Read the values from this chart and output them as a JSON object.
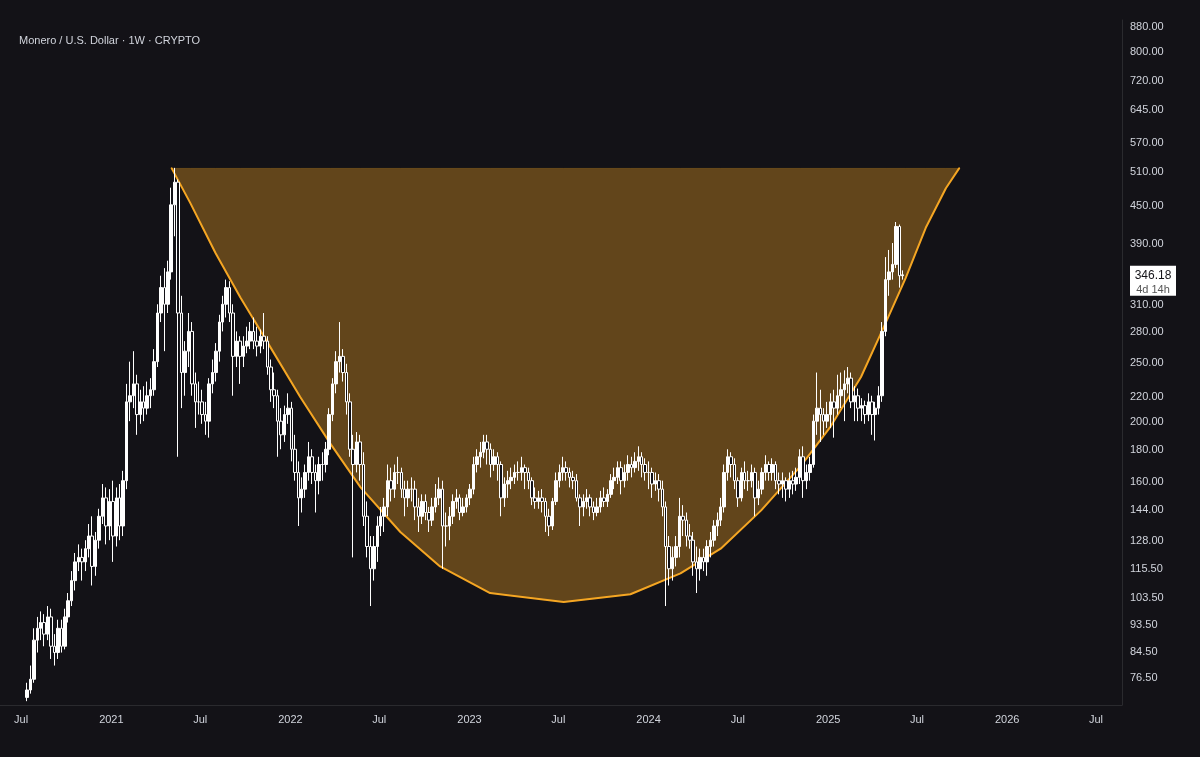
{
  "chart_data": {
    "type": "candlestick",
    "title": "Monero / U.S. Dollar · 1W · CRYPTO",
    "xlim": [
      "2020-05-19",
      "2026-08-23"
    ],
    "xticks": [
      {
        "value": "2020-07-01",
        "label": "Jul"
      },
      {
        "value": "2021-01-01",
        "label": "2021"
      },
      {
        "value": "2021-07-01",
        "label": "Jul"
      },
      {
        "value": "2022-01-01",
        "label": "2022"
      },
      {
        "value": "2022-07-01",
        "label": "Jul"
      },
      {
        "value": "2023-01-01",
        "label": "2023"
      },
      {
        "value": "2023-07-01",
        "label": "Jul"
      },
      {
        "value": "2024-01-01",
        "label": "2024"
      },
      {
        "value": "2024-07-01",
        "label": "Jul"
      },
      {
        "value": "2025-01-01",
        "label": "2025"
      },
      {
        "value": "2025-07-01",
        "label": "Jul"
      },
      {
        "value": "2026-01-01",
        "label": "2026"
      },
      {
        "value": "2026-07-01",
        "label": "Jul"
      }
    ],
    "log": "y",
    "ylim": [
      69,
      900
    ],
    "yticks": [
      {
        "value": 76.5,
        "label": "76.50"
      },
      {
        "value": 84.5,
        "label": "84.50"
      },
      {
        "value": 93.5,
        "label": "93.50"
      },
      {
        "value": 103.5,
        "label": "103.50"
      },
      {
        "value": 115.5,
        "label": "115.50"
      },
      {
        "value": 128,
        "label": "128.00"
      },
      {
        "value": 144,
        "label": "144.00"
      },
      {
        "value": 160,
        "label": "160.00"
      },
      {
        "value": 180,
        "label": "180.00"
      },
      {
        "value": 200,
        "label": "200.00"
      },
      {
        "value": 220,
        "label": "220.00"
      },
      {
        "value": 250,
        "label": "250.00"
      },
      {
        "value": 280,
        "label": "280.00"
      },
      {
        "value": 310,
        "label": "310.00"
      },
      {
        "value": 390,
        "label": "390.00"
      },
      {
        "value": 450,
        "label": "450.00"
      },
      {
        "value": 510,
        "label": "510.00"
      },
      {
        "value": 570,
        "label": "570.00"
      },
      {
        "value": 645,
        "label": "645.00"
      },
      {
        "value": 720,
        "label": "720.00"
      },
      {
        "value": 800,
        "label": "800.00"
      },
      {
        "value": 880,
        "label": "880.00"
      }
    ],
    "annotations": [
      "346.18",
      "4d 14h"
    ],
    "series": [
      {
        "color": "#ffffff",
        "x": [
          "2020-07-13",
          "2020-07-20",
          "2020-07-27",
          "2020-08-03",
          "2020-08-10",
          "2020-08-17",
          "2020-08-24",
          "2020-08-31",
          "2020-09-07",
          "2020-09-14",
          "2020-09-21",
          "2020-09-28",
          "2020-10-05",
          "2020-10-12",
          "2020-10-19",
          "2020-10-26",
          "2020-11-02",
          "2020-11-09",
          "2020-11-16",
          "2020-11-23",
          "2020-11-30",
          "2020-12-07",
          "2020-12-14",
          "2020-12-21",
          "2020-12-28",
          "2021-01-04",
          "2021-01-11",
          "2021-01-18",
          "2021-01-25",
          "2021-02-01",
          "2021-02-08",
          "2021-02-15",
          "2021-02-22",
          "2021-03-01",
          "2021-03-08",
          "2021-03-15",
          "2021-03-22",
          "2021-03-29",
          "2021-04-05",
          "2021-04-12",
          "2021-04-19",
          "2021-04-26",
          "2021-05-03",
          "2021-05-10",
          "2021-05-17",
          "2021-05-24",
          "2021-05-31",
          "2021-06-07",
          "2021-06-14",
          "2021-06-21",
          "2021-06-28",
          "2021-07-05",
          "2021-07-12",
          "2021-07-19",
          "2021-07-26",
          "2021-08-02",
          "2021-08-09",
          "2021-08-16",
          "2021-08-23",
          "2021-08-30",
          "2021-09-06",
          "2021-09-13",
          "2021-09-20",
          "2021-09-27",
          "2021-10-04",
          "2021-10-11",
          "2021-10-18",
          "2021-10-25",
          "2021-11-01",
          "2021-11-08",
          "2021-11-15",
          "2021-11-22",
          "2021-11-29",
          "2021-12-06",
          "2021-12-13",
          "2021-12-20",
          "2021-12-27",
          "2022-01-03",
          "2022-01-10",
          "2022-01-17",
          "2022-01-24",
          "2022-01-31",
          "2022-02-07",
          "2022-02-14",
          "2022-02-21",
          "2022-02-28",
          "2022-03-07",
          "2022-03-14",
          "2022-03-21",
          "2022-03-28",
          "2022-04-04",
          "2022-04-11",
          "2022-04-18",
          "2022-04-25",
          "2022-05-02",
          "2022-05-09",
          "2022-05-16",
          "2022-05-23",
          "2022-05-30",
          "2022-06-06",
          "2022-06-13",
          "2022-06-20",
          "2022-06-27",
          "2022-07-04",
          "2022-07-11",
          "2022-07-18",
          "2022-07-25",
          "2022-08-01",
          "2022-08-08",
          "2022-08-15",
          "2022-08-22",
          "2022-08-29",
          "2022-09-05",
          "2022-09-12",
          "2022-09-19",
          "2022-09-26",
          "2022-10-03",
          "2022-10-10",
          "2022-10-17",
          "2022-10-24",
          "2022-10-31",
          "2022-11-07",
          "2022-11-14",
          "2022-11-21",
          "2022-11-28",
          "2022-12-05",
          "2022-12-12",
          "2022-12-19",
          "2022-12-26",
          "2023-01-02",
          "2023-01-09",
          "2023-01-16",
          "2023-01-23",
          "2023-01-30",
          "2023-02-06",
          "2023-02-13",
          "2023-02-20",
          "2023-02-27",
          "2023-03-06",
          "2023-03-13",
          "2023-03-20",
          "2023-03-27",
          "2023-04-03",
          "2023-04-10",
          "2023-04-17",
          "2023-04-24",
          "2023-05-01",
          "2023-05-08",
          "2023-05-15",
          "2023-05-22",
          "2023-05-29",
          "2023-06-05",
          "2023-06-12",
          "2023-06-19",
          "2023-06-26",
          "2023-07-03",
          "2023-07-10",
          "2023-07-17",
          "2023-07-24",
          "2023-07-31",
          "2023-08-07",
          "2023-08-14",
          "2023-08-21",
          "2023-08-28",
          "2023-09-04",
          "2023-09-11",
          "2023-09-18",
          "2023-09-25",
          "2023-10-02",
          "2023-10-09",
          "2023-10-16",
          "2023-10-23",
          "2023-10-30",
          "2023-11-06",
          "2023-11-13",
          "2023-11-20",
          "2023-11-27",
          "2023-12-04",
          "2023-12-11",
          "2023-12-18",
          "2023-12-25",
          "2024-01-01",
          "2024-01-08",
          "2024-01-15",
          "2024-01-22",
          "2024-01-29",
          "2024-02-05",
          "2024-02-12",
          "2024-02-19",
          "2024-02-26",
          "2024-03-04",
          "2024-03-11",
          "2024-03-18",
          "2024-03-25",
          "2024-04-01",
          "2024-04-08",
          "2024-04-15",
          "2024-04-22",
          "2024-04-29",
          "2024-05-06",
          "2024-05-13",
          "2024-05-20",
          "2024-05-27",
          "2024-06-03",
          "2024-06-10",
          "2024-06-17",
          "2024-06-24",
          "2024-07-01",
          "2024-07-08",
          "2024-07-15",
          "2024-07-22",
          "2024-07-29",
          "2024-08-05",
          "2024-08-12",
          "2024-08-19",
          "2024-08-26",
          "2024-09-02",
          "2024-09-09",
          "2024-09-16",
          "2024-09-23",
          "2024-09-30",
          "2024-10-07",
          "2024-10-14",
          "2024-10-21",
          "2024-10-28",
          "2024-11-04",
          "2024-11-11",
          "2024-11-18",
          "2024-11-25",
          "2024-12-02",
          "2024-12-09",
          "2024-12-16",
          "2024-12-23",
          "2024-12-30",
          "2025-01-06",
          "2025-01-13",
          "2025-01-20",
          "2025-01-27",
          "2025-02-03",
          "2025-02-10",
          "2025-02-17",
          "2025-02-24",
          "2025-03-03",
          "2025-03-10",
          "2025-03-17",
          "2025-03-24",
          "2025-03-31",
          "2025-04-07",
          "2025-04-14",
          "2025-04-21",
          "2025-04-28",
          "2025-05-05",
          "2025-05-12",
          "2025-05-19",
          "2025-05-26",
          "2025-06-02"
        ],
        "ohlc": [
          [
            71,
            75,
            70,
            73
          ],
          [
            73,
            80,
            72,
            76
          ],
          [
            76,
            92,
            75,
            88
          ],
          [
            88,
            96,
            84,
            92
          ],
          [
            92,
            98,
            88,
            94
          ],
          [
            94,
            97,
            86,
            90
          ],
          [
            90,
            100,
            88,
            96
          ],
          [
            96,
            99,
            82,
            86
          ],
          [
            86,
            90,
            80,
            84
          ],
          [
            84,
            95,
            82,
            92
          ],
          [
            92,
            95,
            84,
            86
          ],
          [
            86,
            99,
            85,
            96
          ],
          [
            96,
            105,
            94,
            102
          ],
          [
            102,
            114,
            100,
            110
          ],
          [
            110,
            122,
            106,
            118
          ],
          [
            118,
            126,
            114,
            120
          ],
          [
            120,
            124,
            110,
            118
          ],
          [
            118,
            128,
            114,
            124
          ],
          [
            124,
            136,
            120,
            130
          ],
          [
            130,
            140,
            108,
            116
          ],
          [
            116,
            132,
            112,
            128
          ],
          [
            128,
            144,
            124,
            140
          ],
          [
            140,
            158,
            136,
            150
          ],
          [
            150,
            156,
            126,
            135
          ],
          [
            135,
            155,
            128,
            148
          ],
          [
            148,
            160,
            118,
            130
          ],
          [
            130,
            156,
            125,
            150
          ],
          [
            150,
            158,
            128,
            135
          ],
          [
            135,
            166,
            130,
            160
          ],
          [
            160,
            230,
            155,
            215
          ],
          [
            215,
            250,
            200,
            220
          ],
          [
            220,
            260,
            210,
            230
          ],
          [
            230,
            238,
            190,
            205
          ],
          [
            205,
            225,
            198,
            215
          ],
          [
            215,
            228,
            200,
            210
          ],
          [
            210,
            232,
            205,
            220
          ],
          [
            220,
            235,
            210,
            225
          ],
          [
            225,
            262,
            220,
            250
          ],
          [
            250,
            310,
            245,
            300
          ],
          [
            300,
            345,
            290,
            330
          ],
          [
            330,
            355,
            260,
            310
          ],
          [
            310,
            365,
            300,
            350
          ],
          [
            350,
            480,
            340,
            450
          ],
          [
            450,
            517,
            400,
            490
          ],
          [
            490,
            495,
            175,
            300
          ],
          [
            300,
            320,
            210,
            240
          ],
          [
            240,
            270,
            220,
            260
          ],
          [
            260,
            300,
            245,
            280
          ],
          [
            280,
            290,
            220,
            230
          ],
          [
            230,
            240,
            195,
            215
          ],
          [
            215,
            232,
            205,
            215
          ],
          [
            215,
            225,
            198,
            205
          ],
          [
            205,
            215,
            190,
            200
          ],
          [
            200,
            235,
            188,
            230
          ],
          [
            230,
            252,
            222,
            240
          ],
          [
            240,
            268,
            232,
            260
          ],
          [
            260,
            298,
            250,
            290
          ],
          [
            290,
            320,
            280,
            310
          ],
          [
            310,
            340,
            295,
            330
          ],
          [
            330,
            338,
            290,
            300
          ],
          [
            300,
            310,
            220,
            255
          ],
          [
            255,
            280,
            245,
            270
          ],
          [
            270,
            275,
            230,
            255
          ],
          [
            255,
            275,
            245,
            265
          ],
          [
            265,
            285,
            258,
            270
          ],
          [
            270,
            290,
            262,
            280
          ],
          [
            280,
            295,
            262,
            270
          ],
          [
            270,
            285,
            255,
            265
          ],
          [
            265,
            282,
            258,
            275
          ],
          [
            275,
            300,
            262,
            270
          ],
          [
            270,
            275,
            238,
            245
          ],
          [
            245,
            252,
            215,
            225
          ],
          [
            225,
            240,
            210,
            220
          ],
          [
            220,
            225,
            175,
            200
          ],
          [
            200,
            210,
            180,
            190
          ],
          [
            190,
            212,
            185,
            205
          ],
          [
            205,
            222,
            198,
            210
          ],
          [
            210,
            215,
            172,
            180
          ],
          [
            180,
            190,
            160,
            165
          ],
          [
            165,
            172,
            135,
            150
          ],
          [
            150,
            162,
            142,
            155
          ],
          [
            155,
            170,
            150,
            165
          ],
          [
            165,
            185,
            160,
            175
          ],
          [
            175,
            180,
            158,
            165
          ],
          [
            165,
            170,
            142,
            160
          ],
          [
            160,
            175,
            152,
            170
          ],
          [
            170,
            178,
            160,
            170
          ],
          [
            170,
            185,
            165,
            180
          ],
          [
            180,
            210,
            176,
            205
          ],
          [
            205,
            235,
            200,
            230
          ],
          [
            230,
            260,
            222,
            250
          ],
          [
            250,
            290,
            240,
            255
          ],
          [
            255,
            262,
            232,
            240
          ],
          [
            240,
            248,
            205,
            215
          ],
          [
            215,
            222,
            175,
            180
          ],
          [
            180,
            190,
            120,
            170
          ],
          [
            170,
            192,
            165,
            185
          ],
          [
            185,
            190,
            160,
            170
          ],
          [
            170,
            178,
            135,
            140
          ],
          [
            140,
            148,
            120,
            125
          ],
          [
            125,
            130,
            100,
            115
          ],
          [
            115,
            130,
            110,
            125
          ],
          [
            125,
            140,
            118,
            135
          ],
          [
            135,
            145,
            130,
            140
          ],
          [
            140,
            150,
            132,
            145
          ],
          [
            145,
            170,
            140,
            160
          ],
          [
            160,
            168,
            148,
            155
          ],
          [
            155,
            170,
            150,
            165
          ],
          [
            165,
            175,
            158,
            165
          ],
          [
            165,
            168,
            150,
            155
          ],
          [
            155,
            160,
            140,
            150
          ],
          [
            150,
            160,
            145,
            155
          ],
          [
            155,
            162,
            148,
            155
          ],
          [
            155,
            160,
            138,
            145
          ],
          [
            145,
            150,
            132,
            140
          ],
          [
            140,
            152,
            136,
            148
          ],
          [
            148,
            152,
            138,
            142
          ],
          [
            142,
            145,
            132,
            138
          ],
          [
            138,
            150,
            135,
            145
          ],
          [
            145,
            158,
            142,
            150
          ],
          [
            150,
            162,
            146,
            155
          ],
          [
            155,
            160,
            115,
            135
          ],
          [
            135,
            142,
            125,
            135
          ],
          [
            135,
            145,
            128,
            140
          ],
          [
            140,
            152,
            136,
            148
          ],
          [
            148,
            155,
            144,
            150
          ],
          [
            150,
            152,
            138,
            142
          ],
          [
            142,
            150,
            140,
            145
          ],
          [
            145,
            152,
            142,
            150
          ],
          [
            150,
            158,
            146,
            155
          ],
          [
            155,
            175,
            152,
            170
          ],
          [
            170,
            180,
            165,
            175
          ],
          [
            175,
            185,
            168,
            178
          ],
          [
            178,
            190,
            174,
            185
          ],
          [
            185,
            190,
            170,
            180
          ],
          [
            180,
            184,
            162,
            170
          ],
          [
            170,
            180,
            166,
            175
          ],
          [
            175,
            178,
            160,
            170
          ],
          [
            170,
            172,
            140,
            150
          ],
          [
            150,
            162,
            145,
            158
          ],
          [
            158,
            166,
            150,
            160
          ],
          [
            160,
            168,
            155,
            162
          ],
          [
            162,
            170,
            158,
            165
          ],
          [
            165,
            172,
            160,
            165
          ],
          [
            165,
            175,
            160,
            168
          ],
          [
            168,
            170,
            155,
            165
          ],
          [
            165,
            168,
            155,
            160
          ],
          [
            160,
            162,
            146,
            150
          ],
          [
            150,
            156,
            144,
            148
          ],
          [
            148,
            154,
            144,
            150
          ],
          [
            150,
            155,
            142,
            148
          ],
          [
            148,
            150,
            132,
            140
          ],
          [
            140,
            144,
            130,
            135
          ],
          [
            135,
            150,
            133,
            148
          ],
          [
            148,
            165,
            146,
            160
          ],
          [
            160,
            170,
            156,
            165
          ],
          [
            165,
            175,
            160,
            168
          ],
          [
            168,
            172,
            160,
            165
          ],
          [
            165,
            168,
            156,
            162
          ],
          [
            162,
            166,
            155,
            160
          ],
          [
            160,
            164,
            148,
            150
          ],
          [
            150,
            152,
            135,
            145
          ],
          [
            145,
            152,
            140,
            148
          ],
          [
            148,
            155,
            144,
            150
          ],
          [
            150,
            152,
            140,
            145
          ],
          [
            145,
            148,
            138,
            142
          ],
          [
            142,
            150,
            140,
            145
          ],
          [
            145,
            154,
            142,
            150
          ],
          [
            150,
            156,
            145,
            148
          ],
          [
            148,
            155,
            145,
            152
          ],
          [
            152,
            164,
            150,
            160
          ],
          [
            160,
            168,
            155,
            162
          ],
          [
            162,
            172,
            158,
            168
          ],
          [
            168,
            172,
            152,
            160
          ],
          [
            160,
            170,
            156,
            165
          ],
          [
            165,
            176,
            160,
            170
          ],
          [
            170,
            175,
            162,
            168
          ],
          [
            168,
            178,
            165,
            172
          ],
          [
            172,
            182,
            166,
            175
          ],
          [
            175,
            178,
            162,
            170
          ],
          [
            170,
            174,
            160,
            165
          ],
          [
            165,
            172,
            155,
            165
          ],
          [
            165,
            168,
            150,
            158
          ],
          [
            158,
            165,
            154,
            160
          ],
          [
            160,
            164,
            148,
            155
          ],
          [
            155,
            160,
            140,
            145
          ],
          [
            145,
            148,
            100,
            125
          ],
          [
            125,
            130,
            108,
            115
          ],
          [
            115,
            125,
            110,
            120
          ],
          [
            120,
            130,
            116,
            125
          ],
          [
            125,
            150,
            120,
            140
          ],
          [
            140,
            146,
            130,
            138
          ],
          [
            138,
            142,
            125,
            130
          ],
          [
            130,
            136,
            124,
            128
          ],
          [
            128,
            132,
            112,
            118
          ],
          [
            118,
            125,
            105,
            115
          ],
          [
            115,
            124,
            110,
            120
          ],
          [
            120,
            124,
            114,
            118
          ],
          [
            118,
            128,
            112,
            125
          ],
          [
            125,
            132,
            120,
            128
          ],
          [
            128,
            138,
            125,
            135
          ],
          [
            135,
            142,
            130,
            138
          ],
          [
            138,
            150,
            135,
            145
          ],
          [
            145,
            170,
            142,
            165
          ],
          [
            165,
            180,
            160,
            175
          ],
          [
            175,
            178,
            162,
            170
          ],
          [
            170,
            174,
            155,
            160
          ],
          [
            160,
            162,
            145,
            150
          ],
          [
            150,
            168,
            148,
            165
          ],
          [
            165,
            172,
            155,
            160
          ],
          [
            160,
            166,
            154,
            160
          ],
          [
            160,
            170,
            156,
            165
          ],
          [
            165,
            168,
            140,
            150
          ],
          [
            150,
            160,
            146,
            155
          ],
          [
            155,
            168,
            152,
            165
          ],
          [
            165,
            176,
            160,
            170
          ],
          [
            170,
            172,
            160,
            165
          ],
          [
            165,
            174,
            160,
            170
          ],
          [
            170,
            172,
            155,
            160
          ],
          [
            160,
            165,
            152,
            158
          ],
          [
            158,
            165,
            150,
            160
          ],
          [
            160,
            162,
            148,
            155
          ],
          [
            155,
            165,
            150,
            160
          ],
          [
            160,
            166,
            152,
            158
          ],
          [
            158,
            168,
            154,
            162
          ],
          [
            162,
            180,
            158,
            175
          ],
          [
            175,
            182,
            150,
            160
          ],
          [
            160,
            170,
            155,
            165
          ],
          [
            165,
            175,
            160,
            170
          ],
          [
            170,
            205,
            168,
            200
          ],
          [
            200,
            240,
            190,
            210
          ],
          [
            210,
            225,
            185,
            205
          ],
          [
            205,
            210,
            190,
            200
          ],
          [
            200,
            215,
            195,
            205
          ],
          [
            205,
            222,
            195,
            215
          ],
          [
            215,
            225,
            188,
            210
          ],
          [
            210,
            238,
            205,
            220
          ],
          [
            220,
            240,
            210,
            225
          ],
          [
            225,
            242,
            200,
            230
          ],
          [
            230,
            245,
            222,
            235
          ],
          [
            235,
            240,
            210,
            215
          ],
          [
            215,
            228,
            200,
            220
          ],
          [
            220,
            226,
            200,
            210
          ],
          [
            210,
            218,
            200,
            212
          ],
          [
            212,
            216,
            198,
            205
          ],
          [
            205,
            222,
            200,
            215
          ],
          [
            215,
            220,
            190,
            205
          ],
          [
            205,
            215,
            186,
            210
          ],
          [
            210,
            228,
            205,
            220
          ],
          [
            220,
            290,
            215,
            280
          ],
          [
            280,
            370,
            275,
            340
          ],
          [
            340,
            380,
            320,
            350
          ],
          [
            350,
            390,
            340,
            360
          ],
          [
            360,
            422,
            355,
            415
          ],
          [
            415,
            418,
            330,
            345
          ],
          [
            345,
            352,
            340,
            346.18
          ]
        ]
      },
      {
        "type": "line",
        "color": "#f5a623",
        "line_style": "solid",
        "marker": "none",
        "x": [
          "2021-05-04",
          "2021-06-11",
          "2021-08-01",
          "2021-09-21",
          "2021-11-21",
          "2022-01-21",
          "2022-03-23",
          "2022-05-24",
          "2022-08-13",
          "2022-11-02",
          "2023-02-12",
          "2023-07-12",
          "2023-11-25",
          "2024-03-06",
          "2024-05-27",
          "2024-08-17",
          "2024-11-06",
          "2025-01-06",
          "2025-03-09",
          "2025-04-29",
          "2025-06-08",
          "2025-07-19",
          "2025-08-29",
          "2025-09-25"
        ],
        "values": [
          516,
          453,
          376,
          318,
          264,
          219,
          184,
          156,
          132,
          116,
          105,
          101.5,
          104.5,
          113,
          124,
          143,
          169,
          196,
          236,
          290,
          342,
          413,
          479,
          516
        ],
        "lower": [
          516,
          453,
          376,
          318,
          264,
          219,
          184,
          156,
          132,
          116,
          105,
          101.5,
          104.5,
          113,
          124,
          143,
          169,
          196,
          236,
          290,
          342,
          413,
          479,
          516
        ],
        "upper": [
          516,
          516,
          516,
          516,
          516,
          516,
          516,
          516,
          516,
          516,
          516,
          516,
          516,
          516,
          516,
          516,
          516,
          516,
          516,
          516,
          516,
          516,
          516,
          516
        ]
      }
    ]
  }
}
